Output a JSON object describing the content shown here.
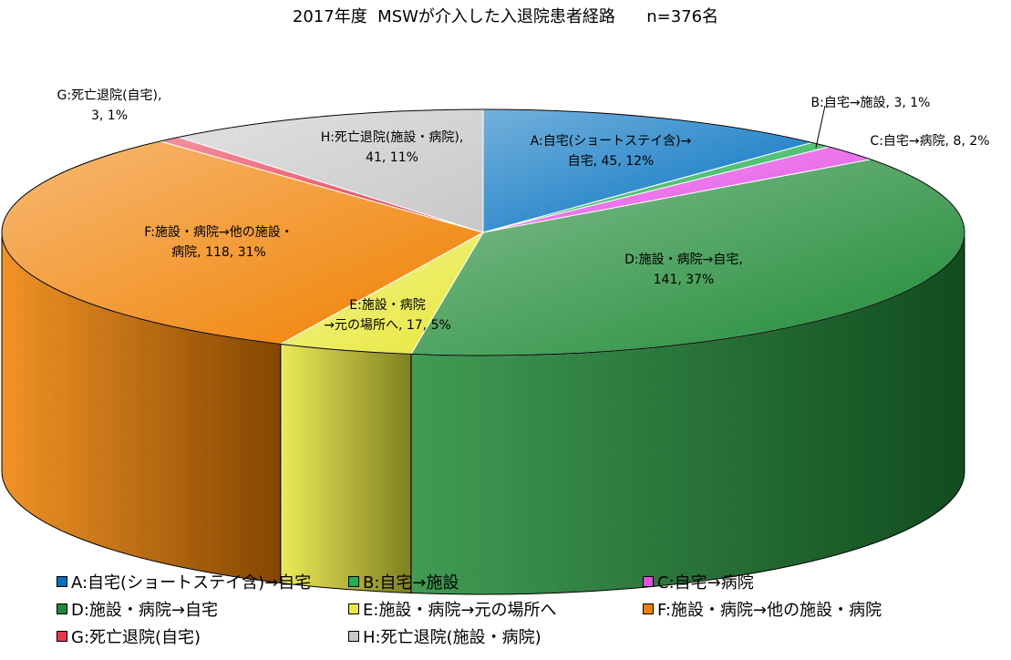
{
  "chart_data": {
    "type": "pie",
    "title": "2017年度  MSWが介入した入退院患者経路      n=376名",
    "total": 376,
    "slices": [
      {
        "key": "A",
        "name": "A:自宅(ショートステイ含)→自宅",
        "value": 45,
        "percent": 12,
        "label": [
          "A:自宅(ショートステイ含)→",
          "自宅, 45, 12%"
        ],
        "color": "#0070c0"
      },
      {
        "key": "B",
        "name": "B:自宅→施設",
        "value": 3,
        "percent": 1,
        "label": [
          "B:自宅→施設, 3, 1%"
        ],
        "color": "#22b14c"
      },
      {
        "key": "C",
        "name": "C:自宅→病院",
        "value": 8,
        "percent": 2,
        "label": [
          "C:自宅→病院, 8, 2%"
        ],
        "color": "#e64ce6"
      },
      {
        "key": "D",
        "name": "D:施設・病院→自宅",
        "value": 141,
        "percent": 37,
        "label": [
          "D:施設・病院→自宅,",
          "141, 37%"
        ],
        "color": "#1f8a36"
      },
      {
        "key": "E",
        "name": "E:施設・病院→元の場所へ",
        "value": 17,
        "percent": 5,
        "label": [
          "E:施設・病院",
          "→元の場所へ, 17, 5%"
        ],
        "color": "#e8e83a"
      },
      {
        "key": "F",
        "name": "F:施設・病院→他の施設・病院",
        "value": 118,
        "percent": 31,
        "label": [
          "F:施設・病院→他の施設・",
          "病院, 118, 31%"
        ],
        "color": "#f08000"
      },
      {
        "key": "G",
        "name": "G:死亡退院(自宅)",
        "value": 3,
        "percent": 1,
        "label": [
          "G:死亡退院(自宅),",
          "3, 1%"
        ],
        "color": "#e8384f"
      },
      {
        "key": "H",
        "name": "H:死亡退院(施設・病院)",
        "value": 41,
        "percent": 11,
        "label": [
          "H:死亡退院(施設・病院),",
          "41, 11%"
        ],
        "color": "#c8c8c8"
      }
    ],
    "legend_position": "bottom"
  }
}
